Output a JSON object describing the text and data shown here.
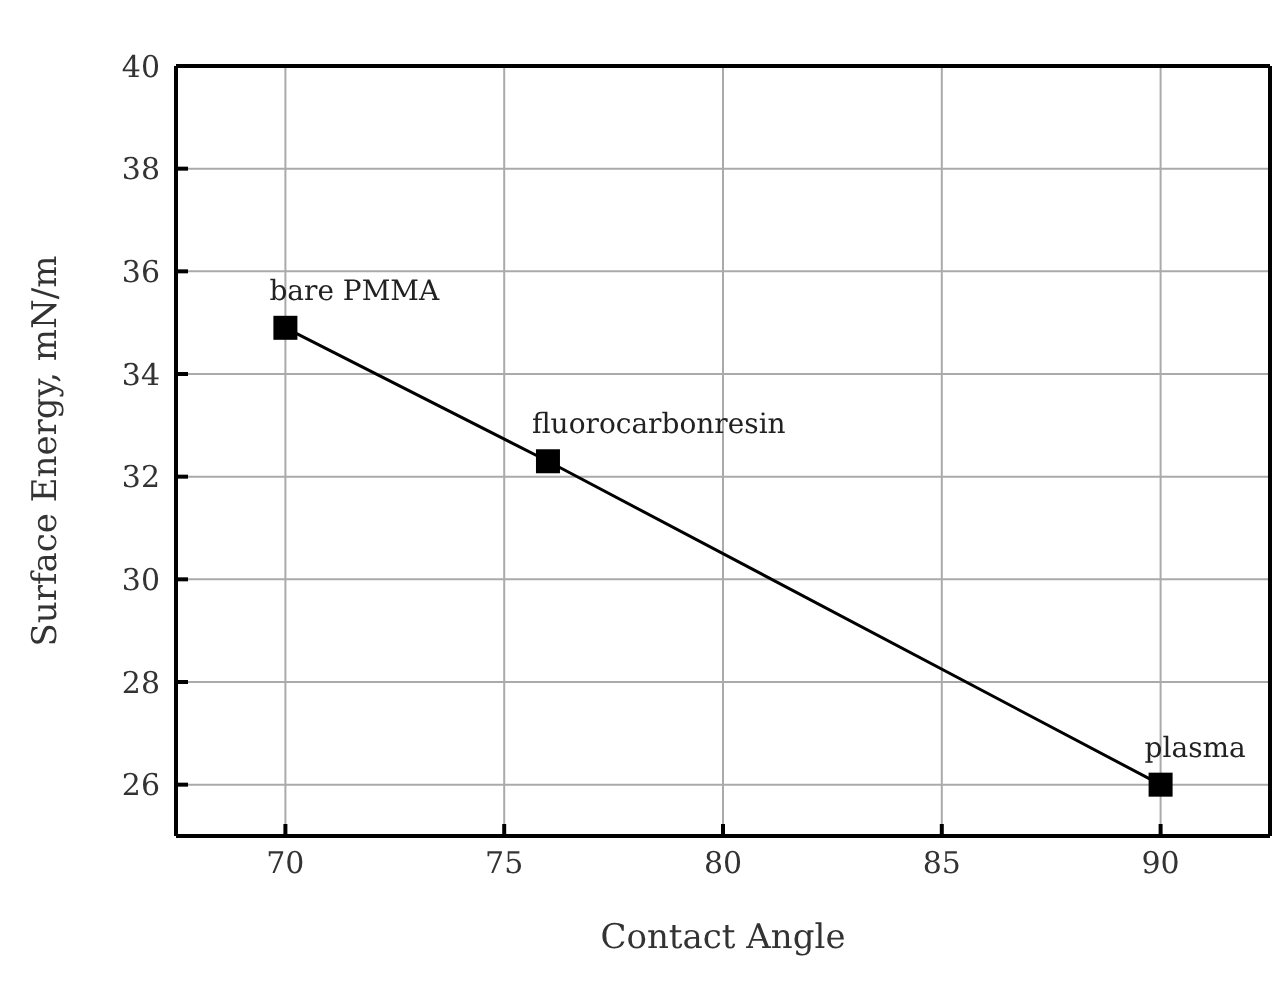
{
  "chart_data": {
    "type": "line",
    "xlabel": "Contact Angle",
    "ylabel": "Surface Energy, mN/m",
    "x": [
      70,
      76,
      90
    ],
    "series": [
      {
        "color": "#000000",
        "values": [
          34.9,
          32.3,
          26.0
        ]
      }
    ],
    "xlim": [
      67.5,
      92.5
    ],
    "xticks": [
      70,
      75,
      80,
      85,
      90
    ],
    "ylim": [
      25,
      40
    ],
    "yticks": [
      26,
      28,
      30,
      32,
      34,
      36,
      38,
      40
    ],
    "grid": true,
    "marker": "square",
    "line_style": "solid",
    "annotations": [
      {
        "text": "bare PMMA",
        "x": 70,
        "y": 34.9
      },
      {
        "text": "fluorocarbonresin",
        "x": 76,
        "y": 32.3
      },
      {
        "text": "plasma",
        "x": 90,
        "y": 26.0
      }
    ]
  }
}
